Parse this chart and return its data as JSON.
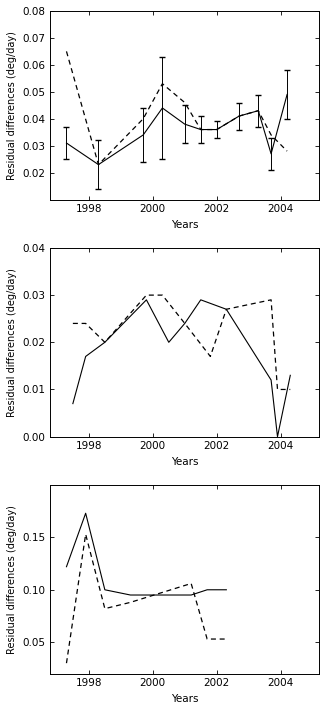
{
  "panel1": {
    "solid_x": [
      1997.3,
      1998.3,
      1999.7,
      2000.3,
      2001.0,
      2001.5,
      2002.0,
      2002.7,
      2003.3,
      2003.7,
      2004.2
    ],
    "solid_y": [
      0.031,
      0.023,
      0.034,
      0.044,
      0.038,
      0.036,
      0.036,
      0.041,
      0.043,
      0.027,
      0.049
    ],
    "solid_yerr": [
      0.006,
      0.009,
      0.01,
      0.019,
      0.007,
      0.005,
      0.003,
      0.005,
      0.006,
      0.006,
      0.009
    ],
    "dashed_x": [
      1997.3,
      1998.3,
      1999.7,
      2000.3,
      2001.0,
      2001.5,
      2002.0,
      2002.7,
      2003.3,
      2003.7,
      2004.2
    ],
    "dashed_y": [
      0.065,
      0.023,
      0.04,
      0.053,
      0.046,
      0.036,
      0.036,
      0.041,
      0.043,
      0.034,
      0.028
    ],
    "ylim": [
      0.01,
      0.08
    ],
    "yticks": [
      0.02,
      0.03,
      0.04,
      0.05,
      0.06,
      0.07,
      0.08
    ],
    "ylabel": "Residual differences (deg/day)"
  },
  "panel2": {
    "solid_x": [
      1997.5,
      1997.9,
      1998.5,
      1999.8,
      2000.5,
      2001.0,
      2001.5,
      2002.3,
      2003.7,
      2003.9,
      2004.3
    ],
    "solid_y": [
      0.007,
      0.017,
      0.02,
      0.029,
      0.02,
      0.024,
      0.029,
      0.027,
      0.012,
      0.0,
      0.013
    ],
    "dashed_x": [
      1997.5,
      1997.9,
      1998.5,
      1999.8,
      2000.3,
      2001.0,
      2001.8,
      2002.3,
      2003.7,
      2003.9,
      2004.3
    ],
    "dashed_y": [
      0.024,
      0.024,
      0.02,
      0.03,
      0.03,
      0.024,
      0.017,
      0.027,
      0.029,
      0.01,
      0.01
    ],
    "ylim": [
      0.0,
      0.04
    ],
    "yticks": [
      0.0,
      0.01,
      0.02,
      0.03,
      0.04
    ],
    "ylabel": "Residual differences (deg/day)"
  },
  "panel3": {
    "solid_x": [
      1997.3,
      1997.9,
      1998.5,
      1999.3,
      2001.2,
      2001.7,
      2002.3
    ],
    "solid_y": [
      0.122,
      0.173,
      0.1,
      0.095,
      0.095,
      0.1,
      0.1
    ],
    "dashed_x": [
      1997.3,
      1997.9,
      1998.5,
      1999.3,
      2001.2,
      2001.7,
      2002.3
    ],
    "dashed_y": [
      0.03,
      0.153,
      0.082,
      0.088,
      0.106,
      0.053,
      0.053
    ],
    "ylim": [
      0.02,
      0.2
    ],
    "yticks": [
      0.05,
      0.1,
      0.15
    ],
    "ylabel": "Residual differences (deg/day)"
  },
  "xlabel": "Years",
  "xlim": [
    1996.8,
    2005.2
  ],
  "xticks": [
    1998,
    2000,
    2002,
    2004
  ]
}
